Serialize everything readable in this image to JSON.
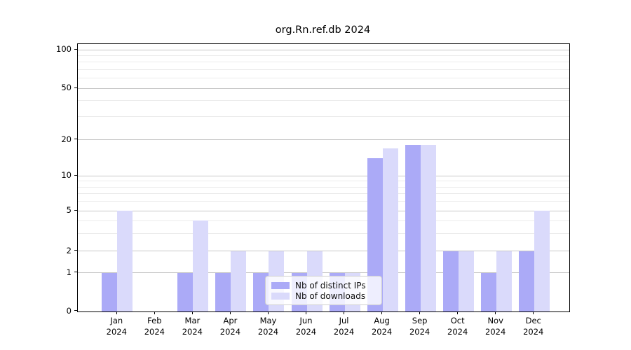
{
  "title": "org.Rn.ref.db 2024",
  "chart_data": {
    "type": "bar",
    "title": "org.Rn.ref.db 2024",
    "categories": [
      "Jan 2024",
      "Feb 2024",
      "Mar 2024",
      "Apr 2024",
      "May 2024",
      "Jun 2024",
      "Jul 2024",
      "Aug 2024",
      "Sep 2024",
      "Oct 2024",
      "Nov 2024",
      "Dec 2024"
    ],
    "series": [
      {
        "name": "Nb of distinct IPs",
        "color": "#abaaf7",
        "values": [
          1,
          0,
          1,
          1,
          1,
          1,
          1,
          14,
          18,
          2,
          1,
          2
        ]
      },
      {
        "name": "Nb of downloads",
        "color": "#dadafb",
        "values": [
          5,
          0,
          4,
          2,
          2,
          2,
          1,
          17,
          18,
          2,
          2,
          5
        ]
      }
    ],
    "ylabel": "",
    "xlabel": "",
    "yscale": "log-like",
    "yticks": [
      0,
      1,
      2,
      5,
      10,
      20,
      50,
      100
    ],
    "minor_gridlines": [
      3,
      4,
      6,
      7,
      8,
      9,
      30,
      40,
      60,
      70,
      80,
      90
    ],
    "ylim": [
      0,
      110
    ],
    "grid": true,
    "legend_position": "lower center"
  },
  "legend": {
    "items": [
      {
        "label": "Nb of distinct IPs"
      },
      {
        "label": "Nb of downloads"
      }
    ]
  },
  "colors": {
    "distinct_ips_bar": "#abaaf7",
    "downloads_bar": "#dadafb",
    "major_grid": "#c6c6c6",
    "minor_grid": "#ebebeb",
    "axis": "#000000",
    "background": "#ffffff"
  }
}
